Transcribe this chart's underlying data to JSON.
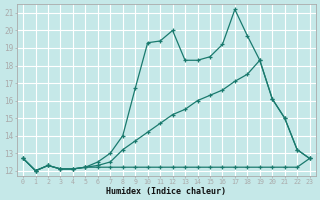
{
  "xlabel": "Humidex (Indice chaleur)",
  "background_color": "#c5e8e8",
  "grid_color": "#ffffff",
  "line_color": "#1a7a6e",
  "xlim": [
    -0.5,
    23.5
  ],
  "ylim": [
    11.7,
    21.5
  ],
  "xticks": [
    0,
    1,
    2,
    3,
    4,
    5,
    6,
    7,
    8,
    9,
    10,
    11,
    12,
    13,
    14,
    15,
    16,
    17,
    18,
    19,
    20,
    21,
    22,
    23
  ],
  "yticks": [
    12,
    13,
    14,
    15,
    16,
    17,
    18,
    19,
    20,
    21
  ],
  "lines": [
    {
      "x": [
        0,
        1,
        2,
        3,
        4,
        5,
        6,
        7,
        8,
        9,
        10,
        11,
        12,
        13,
        14,
        15,
        16,
        17,
        18,
        19,
        20,
        21,
        22,
        23
      ],
      "y": [
        12.7,
        12.0,
        12.3,
        12.1,
        12.1,
        12.2,
        12.5,
        13.0,
        14.0,
        16.7,
        19.3,
        19.4,
        20.0,
        18.3,
        18.3,
        18.5,
        19.2,
        21.2,
        19.7,
        18.3,
        16.1,
        15.0,
        13.2,
        12.7
      ]
    },
    {
      "x": [
        0,
        1,
        2,
        3,
        4,
        5,
        6,
        7,
        8,
        9,
        10,
        11,
        12,
        13,
        14,
        15,
        16,
        17,
        18,
        19,
        20,
        21,
        22,
        23
      ],
      "y": [
        12.7,
        12.0,
        12.3,
        12.1,
        12.1,
        12.2,
        12.3,
        12.5,
        13.2,
        13.7,
        14.2,
        14.7,
        15.2,
        15.5,
        16.0,
        16.3,
        16.6,
        17.1,
        17.5,
        18.3,
        16.1,
        15.0,
        13.2,
        12.7
      ]
    },
    {
      "x": [
        0,
        1,
        2,
        3,
        4,
        5,
        6,
        7,
        8,
        9,
        10,
        11,
        12,
        13,
        14,
        15,
        16,
        17,
        18,
        19,
        20,
        21,
        22,
        23
      ],
      "y": [
        12.7,
        12.0,
        12.3,
        12.1,
        12.1,
        12.2,
        12.2,
        12.2,
        12.2,
        12.2,
        12.2,
        12.2,
        12.2,
        12.2,
        12.2,
        12.2,
        12.2,
        12.2,
        12.2,
        12.2,
        12.2,
        12.2,
        12.2,
        12.7
      ]
    }
  ]
}
